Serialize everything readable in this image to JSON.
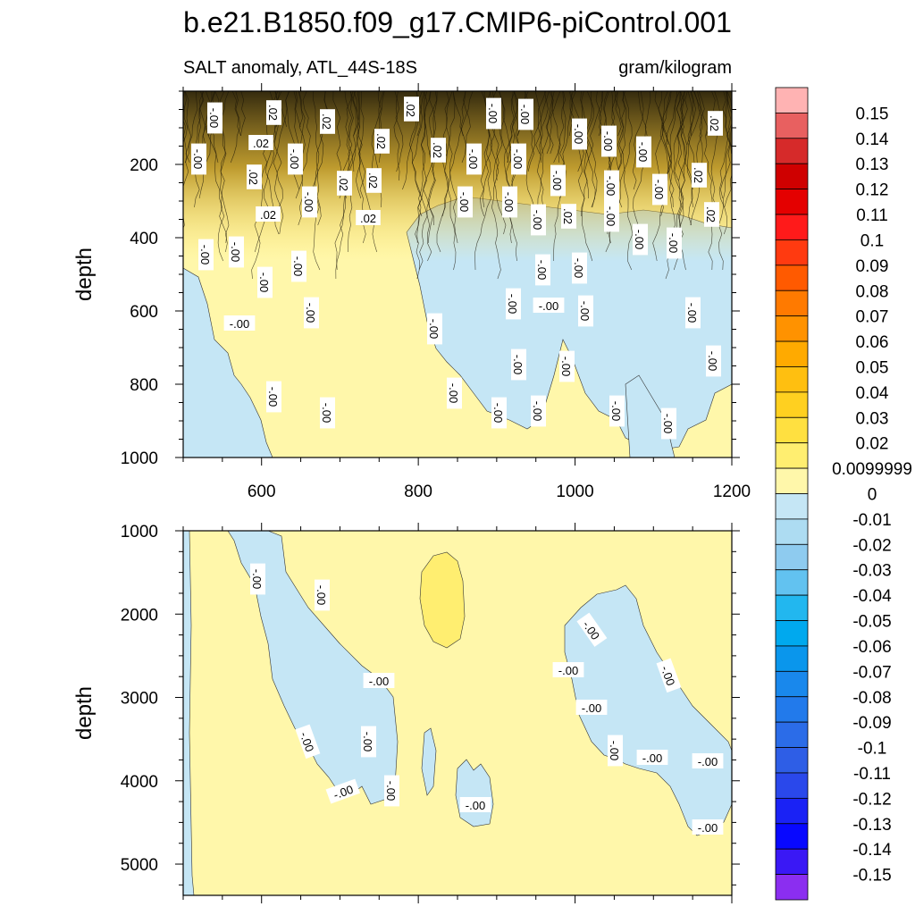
{
  "chart_data": {
    "type": "contour",
    "title": "b.e21.B1850.f09_g17.CMIP6-piControl.001",
    "variable_label": "SALT anomaly, ATL_44S-18S",
    "units": "gram/kilogram",
    "panels": [
      {
        "name": "upper",
        "ylabel": "depth",
        "xlim": [
          500,
          1200
        ],
        "ylim": [
          0,
          1000
        ],
        "y_inverted": true,
        "xticks": [
          600,
          800,
          1000,
          1200
        ],
        "yticks": [
          200,
          400,
          600,
          800,
          1000
        ],
        "contour_labels": [
          "-.00",
          ".02"
        ]
      },
      {
        "name": "lower",
        "ylabel": "depth",
        "xlim": [
          500,
          1200
        ],
        "ylim": [
          1000,
          5375
        ],
        "y_inverted": true,
        "xticks": [],
        "yticks": [
          1000,
          2000,
          3000,
          4000,
          5000
        ],
        "contour_labels": [
          "-.00"
        ]
      }
    ],
    "colorbar": {
      "levels": [
        "0.15",
        "0.14",
        "0.13",
        "0.12",
        "0.11",
        "0.1",
        "0.09",
        "0.08",
        "0.07",
        "0.06",
        "0.05",
        "0.04",
        "0.03",
        "0.02",
        "0.0099999",
        "0",
        "-0.01",
        "-0.02",
        "-0.03",
        "-0.04",
        "-0.05",
        "-0.06",
        "-0.07",
        "-0.08",
        "-0.09",
        "-0.1",
        "-0.11",
        "-0.12",
        "-0.13",
        "-0.14",
        "-0.15"
      ],
      "colors": [
        "#ffb3b3",
        "#e86060",
        "#d62a2a",
        "#cf0000",
        "#e40000",
        "#ff1a1a",
        "#ff3a10",
        "#ff5a00",
        "#ff7a00",
        "#ff9200",
        "#ffaa00",
        "#ffbf10",
        "#ffd020",
        "#ffe040",
        "#ffee70",
        "#fff7aa",
        "#c5e6f5",
        "#addcf2",
        "#8ecbef",
        "#62c2f0",
        "#22b7ef",
        "#00a9ee",
        "#0a96ec",
        "#1988ec",
        "#227aeb",
        "#2b6ce8",
        "#2e5ee6",
        "#2a48eb",
        "#1a22f5",
        "#0808ff",
        "#3a18f5",
        "#8b2ef0"
      ]
    }
  },
  "palette": {
    "neutral": "#fff7aa",
    "light_positive": "#ffee70",
    "light_negative": "#c5e6f5",
    "dark_band": "#1a1407"
  }
}
